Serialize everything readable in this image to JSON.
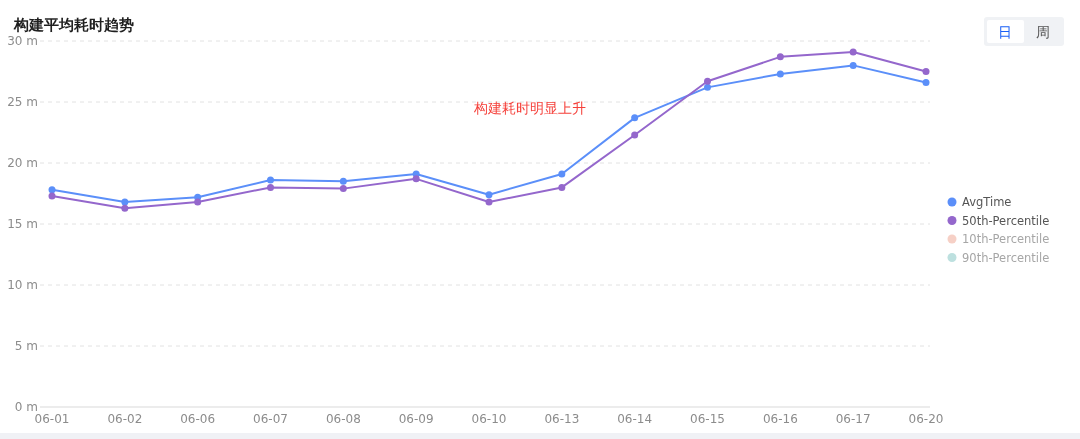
{
  "chart_data": {
    "type": "line",
    "title": "构建平均耗时趋势",
    "categories": [
      "06-01",
      "06-02",
      "06-06",
      "06-07",
      "06-08",
      "06-09",
      "06-10",
      "06-13",
      "06-14",
      "06-15",
      "06-16",
      "06-17",
      "06-20"
    ],
    "series": [
      {
        "name": "AvgTime",
        "color": "#5b8ff9",
        "values": [
          17.8,
          16.8,
          17.2,
          18.6,
          18.5,
          19.1,
          17.4,
          19.1,
          23.7,
          26.2,
          27.3,
          28.0,
          26.6
        ]
      },
      {
        "name": "50th-Percentile",
        "color": "#9467cc",
        "values": [
          17.3,
          16.3,
          16.8,
          18.0,
          17.9,
          18.7,
          16.8,
          18.0,
          22.3,
          26.7,
          28.7,
          29.1,
          27.5
        ]
      },
      {
        "name": "10th-Percentile",
        "color": "#f6d0c6",
        "values": [
          null,
          null,
          null,
          null,
          null,
          null,
          null,
          null,
          null,
          null,
          null,
          null,
          null
        ]
      },
      {
        "name": "90th-Percentile",
        "color": "#bde0df",
        "values": [
          null,
          null,
          null,
          null,
          null,
          null,
          null,
          null,
          null,
          null,
          null,
          null,
          null
        ]
      }
    ],
    "ylim": [
      0,
      30
    ],
    "yticks": [
      {
        "value": 0,
        "label": "0 m"
      },
      {
        "value": 5,
        "label": "5 m"
      },
      {
        "value": 10,
        "label": "10 m"
      },
      {
        "value": 15,
        "label": "15 m"
      },
      {
        "value": 20,
        "label": "20 m"
      },
      {
        "value": 25,
        "label": "25 m"
      },
      {
        "value": 30,
        "label": "30 m"
      }
    ],
    "annotations": [
      "构建耗时明显上升",
      "日",
      "周"
    ],
    "grid": "y",
    "legend": "right",
    "marker": "circle",
    "line_style": "solid"
  }
}
